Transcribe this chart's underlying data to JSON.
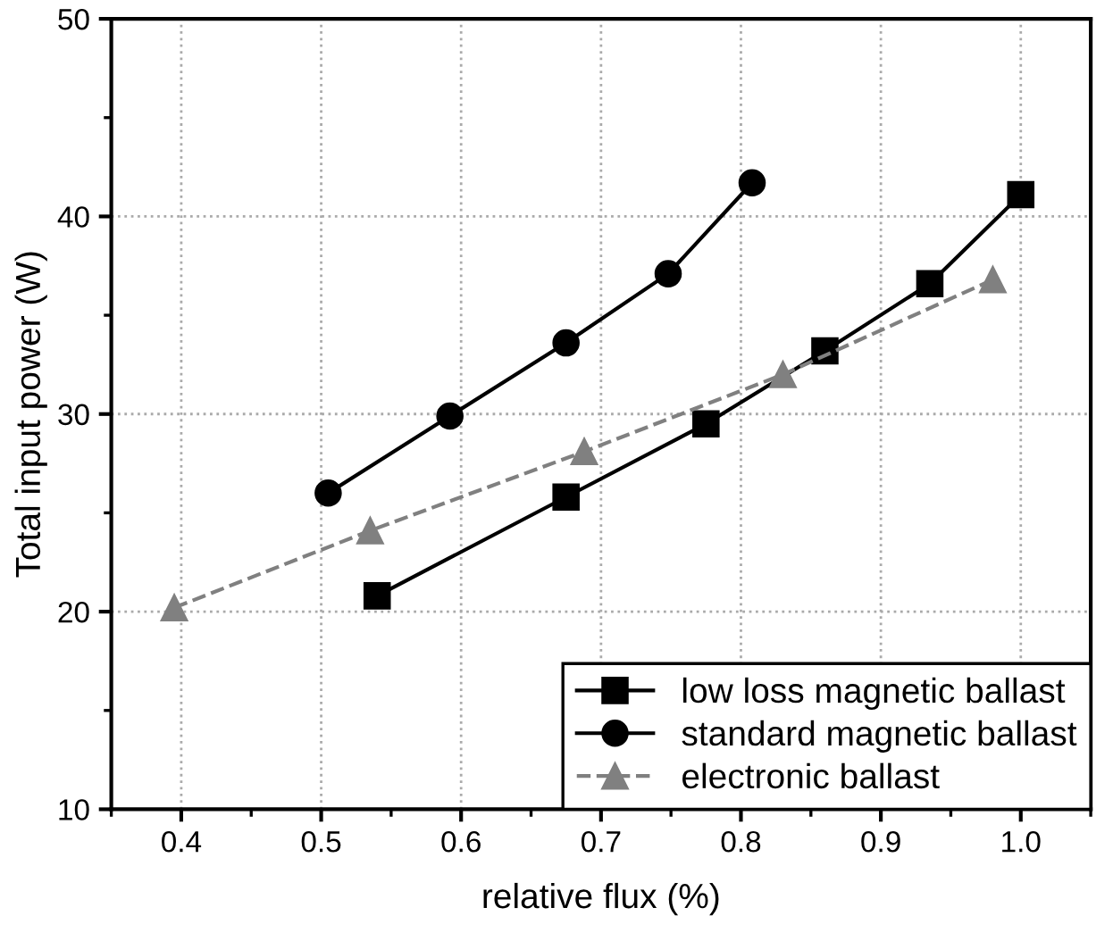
{
  "chart_data": {
    "type": "line",
    "xlabel": "relative flux (%)",
    "ylabel": "Total input power (W)",
    "xlim": [
      0.35,
      1.05
    ],
    "xticks": [
      {
        "value": 0.4,
        "label": "0.4"
      },
      {
        "value": 0.5,
        "label": "0.5"
      },
      {
        "value": 0.6,
        "label": "0.6"
      },
      {
        "value": 0.7,
        "label": "0.7"
      },
      {
        "value": 0.8,
        "label": "0.8"
      },
      {
        "value": 0.9,
        "label": "0.9"
      },
      {
        "value": 1.0,
        "label": "1.0"
      }
    ],
    "ylim": [
      10,
      50
    ],
    "yticks": [
      10,
      20,
      30,
      40,
      50
    ],
    "grid": true,
    "legend": "bottom right",
    "series": [
      {
        "name": "low loss magnetic ballast",
        "color": "#000000",
        "marker": "square",
        "line_style": "solid",
        "x": [
          0.54,
          0.675,
          0.775,
          0.86,
          0.935,
          1.0
        ],
        "values": [
          20.8,
          25.8,
          29.5,
          33.2,
          36.6,
          41.1
        ]
      },
      {
        "name": "standard magnetic ballast",
        "color": "#000000",
        "marker": "circle",
        "line_style": "solid",
        "x": [
          0.505,
          0.592,
          0.675,
          0.748,
          0.808
        ],
        "values": [
          26.0,
          29.9,
          33.6,
          37.1,
          41.7
        ]
      },
      {
        "name": "electronic ballast",
        "color": "#808080",
        "marker": "triangle",
        "line_style": "dashed",
        "x": [
          0.395,
          0.535,
          0.688,
          0.83,
          0.98
        ],
        "values": [
          20.2,
          24.1,
          28.1,
          32.0,
          36.8
        ]
      }
    ]
  }
}
